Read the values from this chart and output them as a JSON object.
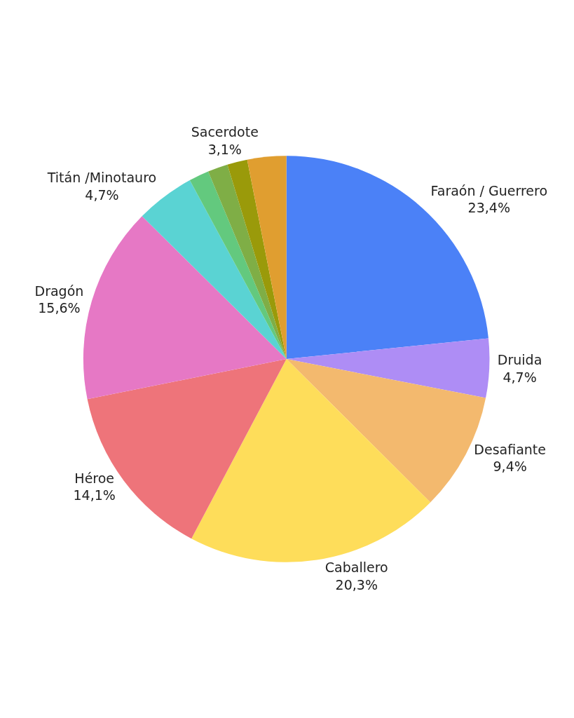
{
  "chart_data": {
    "type": "pie",
    "categories": [
      "Faraón / Guerrero",
      "Druida",
      "Desafiante",
      "Caballero",
      "Héroe",
      "Dragón",
      "Titán /Minotauro",
      null,
      null,
      null,
      "Sacerdote"
    ],
    "values": [
      23.4,
      4.7,
      9.4,
      20.3,
      14.1,
      15.6,
      4.7,
      1.6,
      1.6,
      1.6,
      3.1
    ],
    "value_labels": [
      "23,4%",
      "4,7%",
      "9,4%",
      "20,3%",
      "14,1%",
      "15,6%",
      "4,7%",
      null,
      null,
      null,
      "3,1%"
    ],
    "colors": [
      "#4b81f7",
      "#ae8df5",
      "#f3b96e",
      "#fedd5a",
      "#ee747a",
      "#e678c5",
      "#5ad3d3",
      "#63c97e",
      "#7fae46",
      "#9a9a0a",
      "#e09e30"
    ],
    "legend": false
  }
}
